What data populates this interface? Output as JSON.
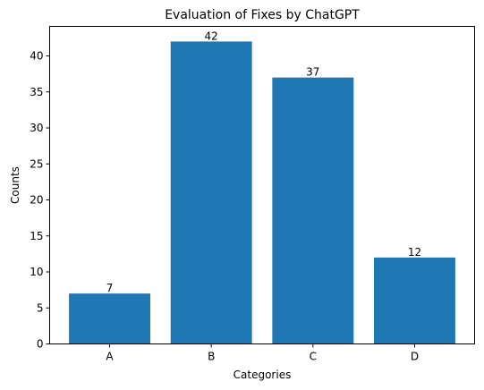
{
  "chart_data": {
    "type": "bar",
    "title": "Evaluation of Fixes by ChatGPT",
    "xlabel": "Categories",
    "ylabel": "Counts",
    "categories": [
      "A",
      "B",
      "C",
      "D"
    ],
    "values": [
      7,
      42,
      37,
      12
    ],
    "ylim": [
      0,
      44.1
    ],
    "yticks": [
      0,
      5,
      10,
      15,
      20,
      25,
      30,
      35,
      40
    ],
    "grid": false,
    "bar_color": "#1f77b4"
  }
}
